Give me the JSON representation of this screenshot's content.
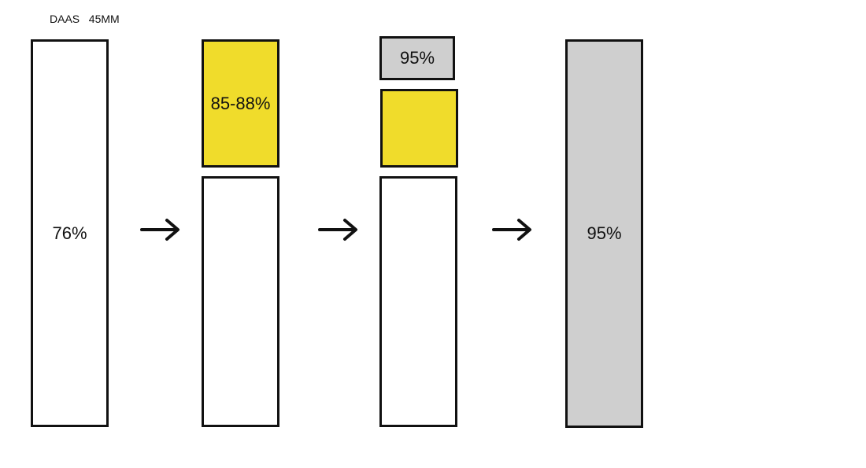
{
  "caption": "DAAS   45MM",
  "colors": {
    "white": "#ffffff",
    "yellow": "#f0dc2b",
    "gray": "#cfcfcf",
    "outline": "#111111"
  },
  "stages": [
    {
      "label": "76%"
    },
    {
      "top_label": "85-88%",
      "bottom_label": ""
    },
    {
      "cap_label": "95%",
      "middle_label": "",
      "bottom_label": ""
    },
    {
      "label": "95%"
    }
  ],
  "arrows": [
    "right-arrow",
    "right-arrow",
    "right-arrow"
  ]
}
